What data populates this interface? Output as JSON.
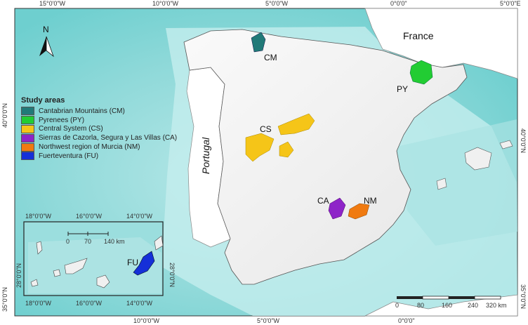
{
  "lon_ticks": [
    "15°0'0\"W",
    "10°0'0\"W",
    "5°0'0\"W",
    "0°0'0\"",
    "5°0'0\"E"
  ],
  "lat_ticks_left": [
    "40°0'0\"N",
    "35°0'0\"N"
  ],
  "lat_ticks_right": [
    "40°0'0\"N",
    "35°0'0\"N"
  ],
  "north_label": "N",
  "country_labels": {
    "france": "France",
    "portugal": "Portugal"
  },
  "legend": {
    "title": "Study areas",
    "items": [
      {
        "label": "Cantabrian Mountains (CM)",
        "color": "#217a78"
      },
      {
        "label": "Pyrenees (PY)",
        "color": "#22cc33"
      },
      {
        "label": "Central System (CS)",
        "color": "#f5c518"
      },
      {
        "label": "Sierras de Cazorla, Segura y Las Villas (CA)",
        "color": "#8e24c8"
      },
      {
        "label": "Northwest region of Murcia (NM)",
        "color": "#f07a10"
      },
      {
        "label": "Fuerteventura (FU)",
        "color": "#1530d8"
      }
    ]
  },
  "area_codes": {
    "cm": "CM",
    "py": "PY",
    "cs": "CS",
    "ca": "CA",
    "nm": "NM",
    "fu": "FU"
  },
  "inset": {
    "lon_ticks": [
      "18°0'0\"W",
      "16°0'0\"W",
      "14°0'0\"W"
    ],
    "lat_ticks": [
      "28°0'0\"N",
      "28°0'0\"N"
    ],
    "scale": {
      "labels": [
        "0",
        "70",
        "140 km"
      ]
    }
  },
  "scalebar": {
    "labels": [
      "0",
      "80",
      "160",
      "240",
      "320 km"
    ]
  },
  "colors": {
    "sea_deep": "#7fd3d3",
    "sea_shallow": "#c2ecec",
    "land": "#f2f2f2",
    "land_outside": "#ffffff"
  }
}
